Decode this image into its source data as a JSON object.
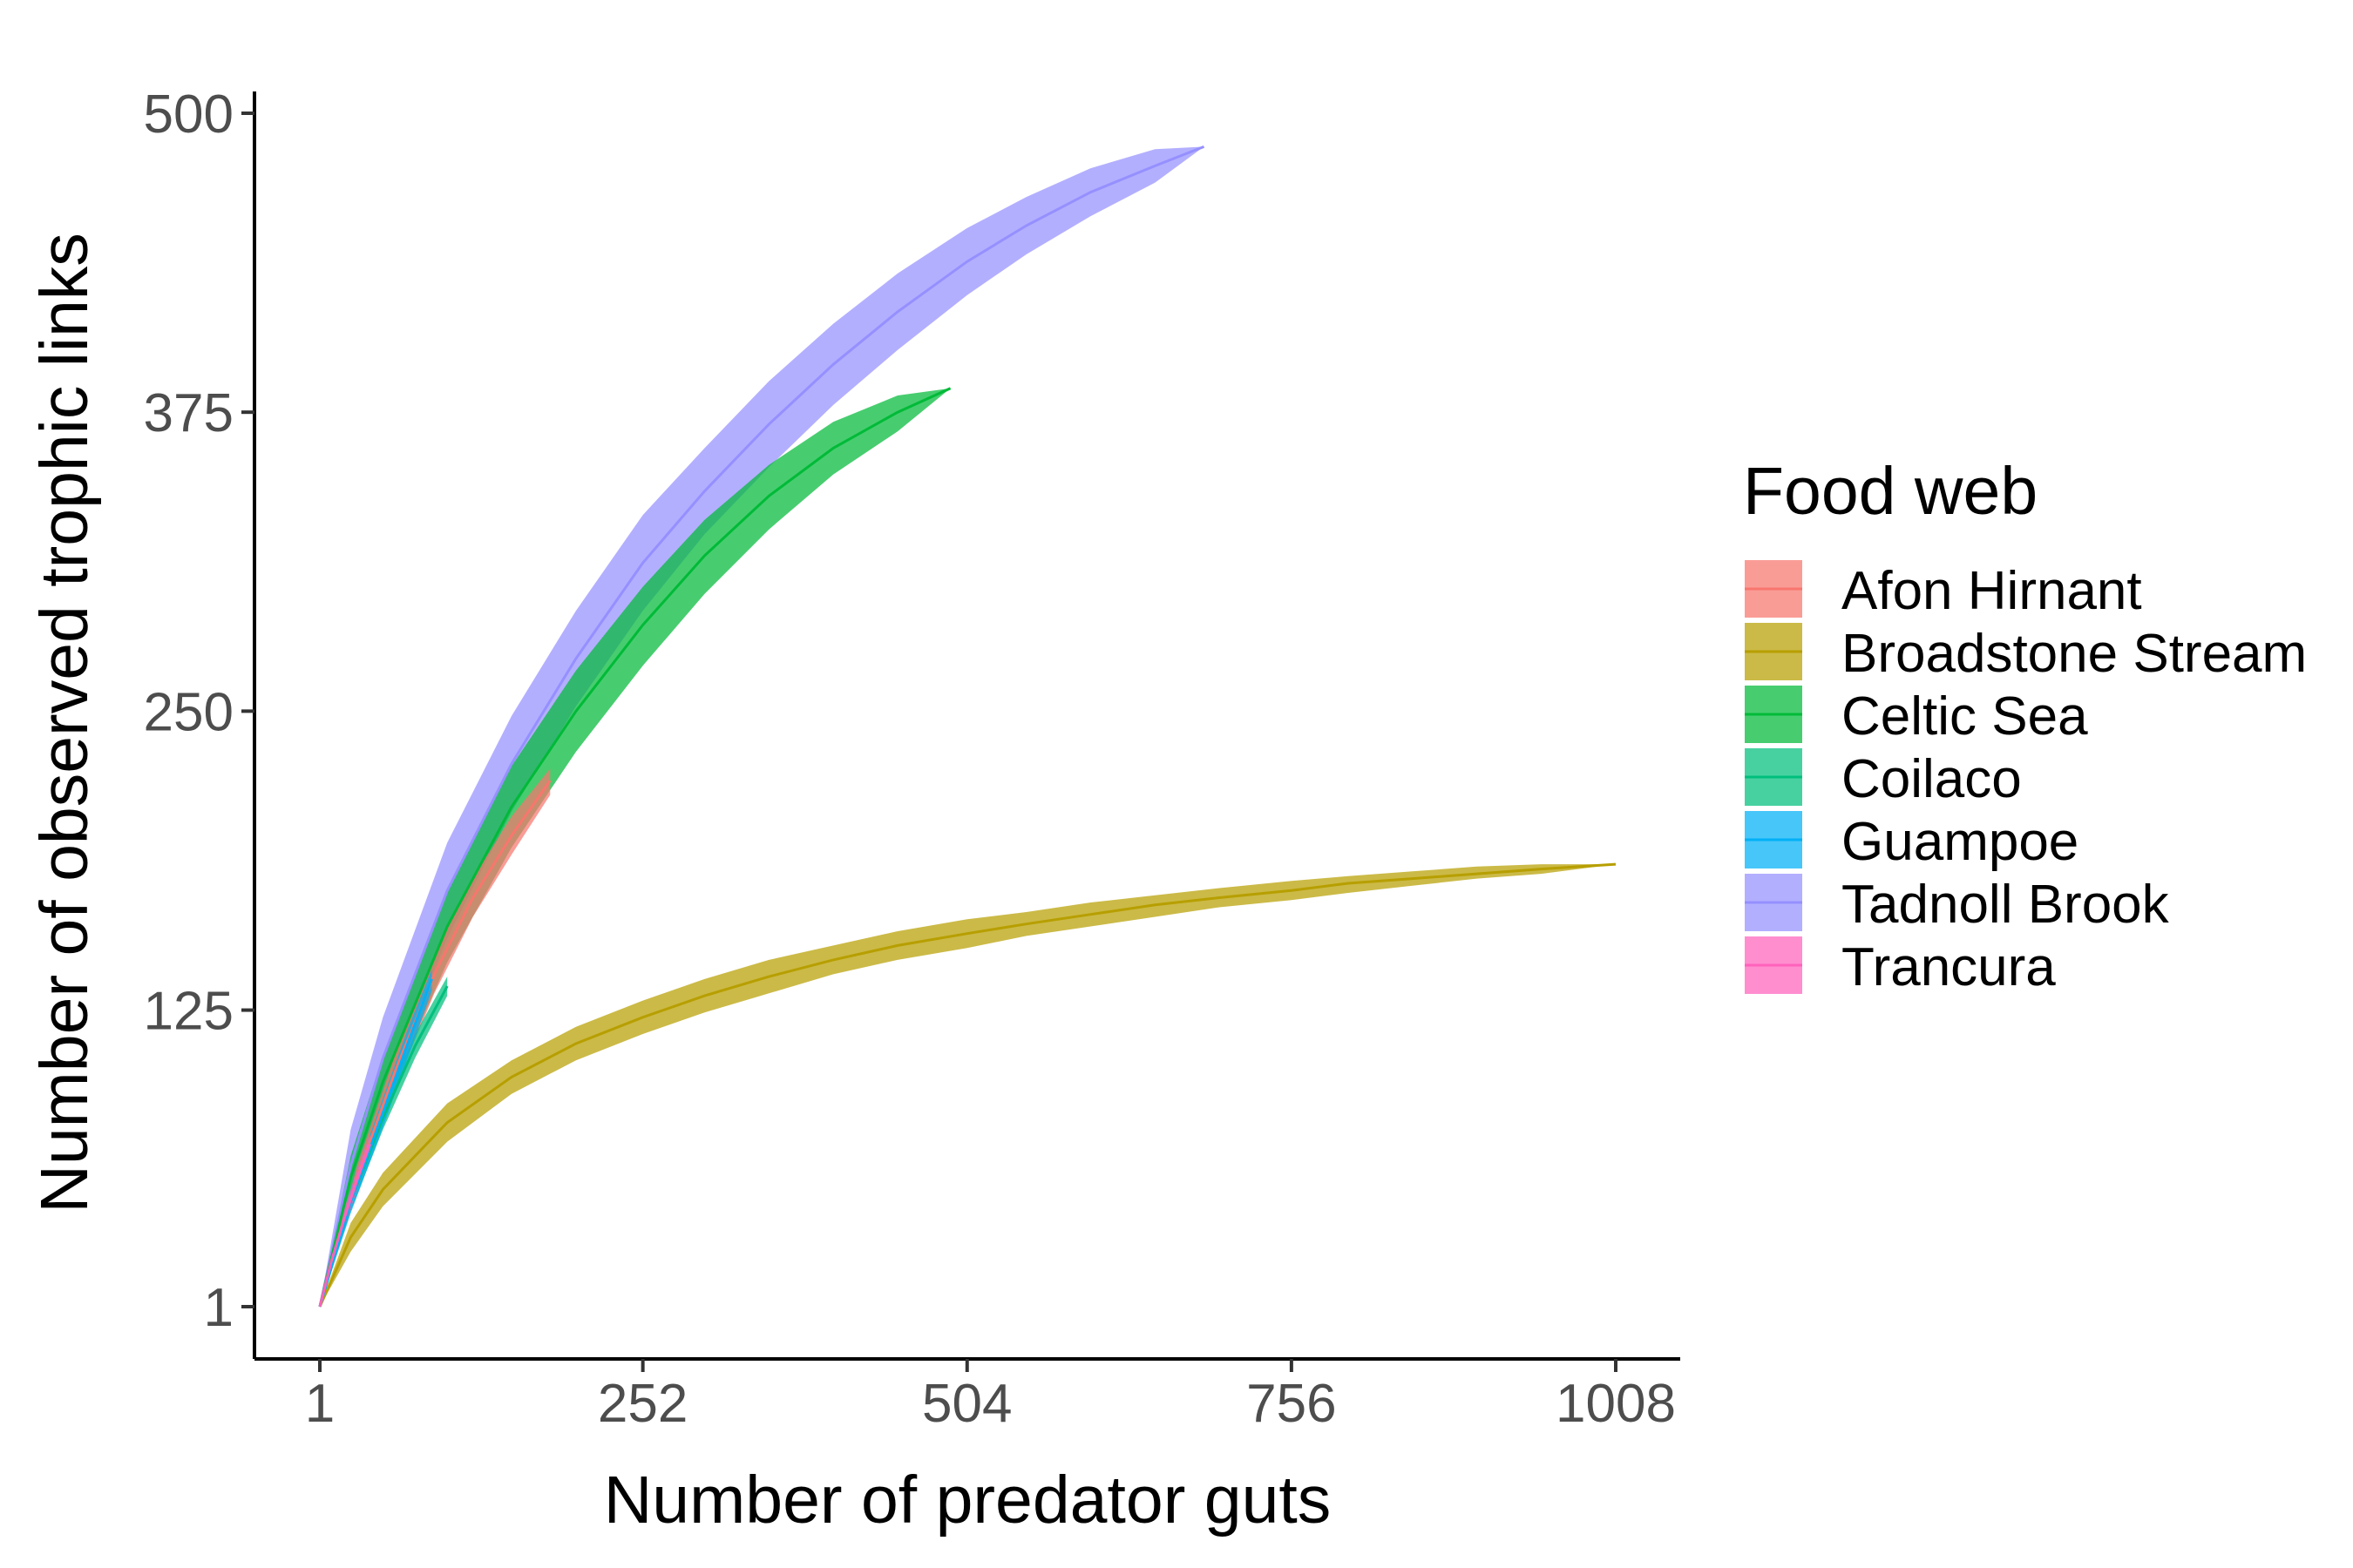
{
  "chart_data": {
    "type": "area",
    "title": "",
    "xlabel": "Number of predator guts",
    "ylabel": "Number of observed trophic links",
    "xlim": [
      1,
      1008
    ],
    "ylim": [
      1,
      500
    ],
    "x_ticks": [
      "1",
      "252",
      "504",
      "756",
      "1008"
    ],
    "y_ticks": [
      "1",
      "125",
      "250",
      "375",
      "500"
    ],
    "grid": false,
    "legend": {
      "title": "Food web",
      "position": "right"
    },
    "series": [
      {
        "name": "Afon Hirnant",
        "color": "#F8766D",
        "x": [
          1,
          30,
          60,
          90,
          120,
          150,
          180
        ],
        "mean": [
          1,
          55,
          100,
          140,
          172,
          198,
          221
        ],
        "lower": [
          1,
          50,
          93,
          132,
          164,
          190,
          215
        ],
        "upper": [
          1,
          60,
          107,
          148,
          180,
          206,
          226
        ]
      },
      {
        "name": "Broadstone Stream",
        "color": "#B79F00",
        "x": [
          1,
          25,
          50,
          100,
          150,
          200,
          252,
          300,
          350,
          400,
          450,
          504,
          550,
          600,
          650,
          700,
          756,
          800,
          850,
          900,
          950,
          1008
        ],
        "mean": [
          1,
          30,
          50,
          78,
          97,
          111,
          122,
          131,
          139,
          146,
          152,
          157,
          161,
          165,
          169,
          172,
          175,
          178,
          180,
          182,
          184,
          186
        ],
        "lower": [
          1,
          24,
          43,
          70,
          90,
          104,
          115,
          124,
          132,
          140,
          146,
          151,
          156,
          160,
          164,
          168,
          171,
          174,
          177,
          180,
          182,
          186
        ],
        "upper": [
          1,
          36,
          57,
          86,
          104,
          118,
          129,
          138,
          146,
          152,
          158,
          163,
          166,
          170,
          173,
          176,
          179,
          181,
          183,
          185,
          186,
          186
        ]
      },
      {
        "name": "Celtic Sea",
        "color": "#00BA38",
        "x": [
          1,
          25,
          50,
          100,
          150,
          200,
          252,
          300,
          350,
          400,
          450,
          491
        ],
        "mean": [
          1,
          55,
          95,
          160,
          210,
          250,
          286,
          315,
          340,
          360,
          375,
          385
        ],
        "lower": [
          1,
          46,
          84,
          145,
          193,
          233,
          269,
          299,
          326,
          349,
          367,
          385
        ],
        "upper": [
          1,
          64,
          106,
          175,
          227,
          267,
          302,
          330,
          353,
          371,
          382,
          385
        ]
      },
      {
        "name": "Coilaco",
        "color": "#00BF7D",
        "x": [
          1,
          25,
          50,
          75,
          100
        ],
        "mean": [
          1,
          45,
          80,
          110,
          135
        ],
        "lower": [
          1,
          41,
          75,
          105,
          131
        ],
        "upper": [
          1,
          49,
          85,
          115,
          139
        ]
      },
      {
        "name": "Guampoe",
        "color": "#00B0F6",
        "x": [
          1,
          25,
          50,
          70,
          88
        ],
        "mean": [
          1,
          45,
          82,
          112,
          138
        ],
        "lower": [
          1,
          40,
          76,
          106,
          133
        ],
        "upper": [
          1,
          50,
          88,
          118,
          142
        ]
      },
      {
        "name": "Tadnoll Brook",
        "color": "#9590FF",
        "x": [
          1,
          25,
          50,
          100,
          150,
          200,
          252,
          300,
          350,
          400,
          450,
          504,
          550,
          600,
          650,
          688
        ],
        "mean": [
          1,
          60,
          105,
          175,
          228,
          272,
          312,
          342,
          370,
          395,
          417,
          438,
          453,
          467,
          478,
          486
        ],
        "lower": [
          1,
          45,
          88,
          155,
          208,
          252,
          292,
          324,
          352,
          378,
          401,
          424,
          441,
          457,
          471,
          486
        ],
        "upper": [
          1,
          75,
          122,
          195,
          248,
          292,
          332,
          360,
          388,
          412,
          433,
          452,
          465,
          477,
          485,
          486
        ]
      },
      {
        "name": "Trancura",
        "color": "#FF62BC",
        "x": [
          1,
          10,
          20,
          30,
          40
        ],
        "mean": [
          1,
          20,
          38,
          54,
          69
        ],
        "lower": [
          1,
          17,
          34,
          50,
          65
        ],
        "upper": [
          1,
          23,
          42,
          58,
          73
        ]
      }
    ]
  }
}
